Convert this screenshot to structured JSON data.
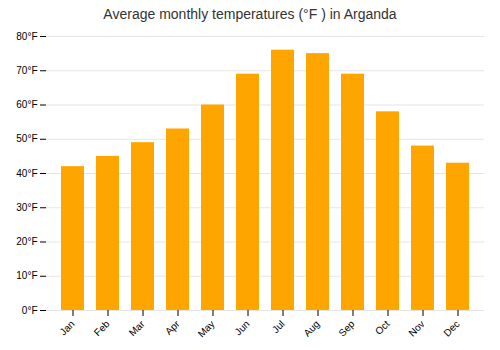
{
  "chart_data": {
    "type": "bar",
    "title": "Average monthly temperatures (°F ) in Arganda",
    "categories": [
      "Jan",
      "Feb",
      "Mar",
      "Apr",
      "May",
      "Jun",
      "Jul",
      "Aug",
      "Sep",
      "Oct",
      "Nov",
      "Dec"
    ],
    "values": [
      42,
      45,
      49,
      53,
      60,
      69,
      76,
      75,
      69,
      58,
      48,
      43
    ],
    "color": "#FFA500",
    "ylim": [
      0,
      80
    ],
    "yticks": [
      {
        "value": 0,
        "label": "0°F"
      },
      {
        "value": 10,
        "label": "10°F"
      },
      {
        "value": 20,
        "label": "20°F"
      },
      {
        "value": 30,
        "label": "30°F"
      },
      {
        "value": 40,
        "label": "40°F"
      },
      {
        "value": 50,
        "label": "50°F"
      },
      {
        "value": 60,
        "label": "60°F"
      },
      {
        "value": 70,
        "label": "70°F"
      },
      {
        "value": 80,
        "label": "80°F"
      }
    ],
    "grid": true
  }
}
